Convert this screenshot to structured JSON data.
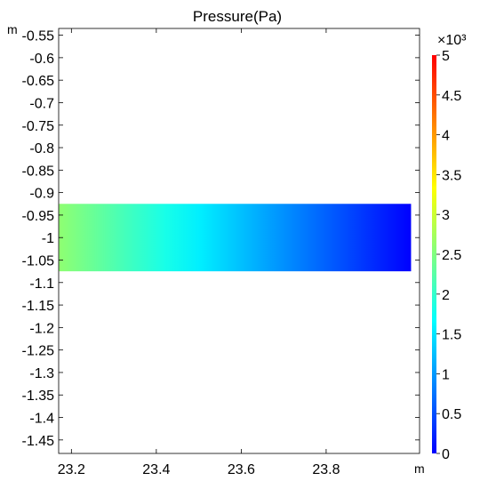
{
  "chart_data": {
    "type": "heatmap",
    "title": "Pressure(Pa)",
    "x_unit": "m",
    "y_unit": "m",
    "xlim": [
      23.17,
      24.02
    ],
    "ylim": [
      -1.48,
      -0.535
    ],
    "x_ticks": [
      "23.2",
      "23.4",
      "23.6",
      "23.8"
    ],
    "y_ticks": [
      "-0.55",
      "-0.6",
      "-0.65",
      "-0.7",
      "-0.75",
      "-0.8",
      "-0.85",
      "-0.9",
      "-0.95",
      "-1",
      "-1.05",
      "-1.1",
      "-1.15",
      "-1.2",
      "-1.25",
      "-1.3",
      "-1.35",
      "-1.4",
      "-1.45"
    ],
    "region": {
      "x_range": [
        23.17,
        24.0
      ],
      "y_range": [
        -1.075,
        -0.925
      ],
      "pressure_start": 2600,
      "pressure_end": 0
    },
    "colorbar": {
      "multiplier_label": "×10³",
      "min": 0,
      "max": 5000,
      "tick_labels": [
        "0",
        "0.5",
        "1",
        "1.5",
        "2",
        "2.5",
        "3",
        "3.5",
        "4",
        "4.5",
        "5"
      ],
      "colors": [
        "#0000ff",
        "#0080ff",
        "#00ffff",
        "#80ff80",
        "#ffff00",
        "#ff8000",
        "#ff0000"
      ]
    },
    "grid": false,
    "legend_placement": "right"
  }
}
